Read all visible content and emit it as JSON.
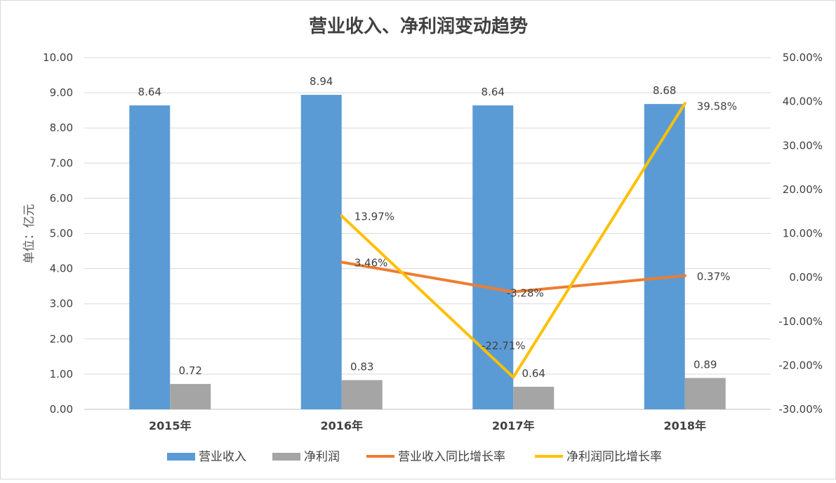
{
  "chart_data": {
    "type": "bar",
    "title": "营业收入、净利润变动趋势",
    "ylabel": "单位：亿元",
    "categories": [
      "2015年",
      "2016年",
      "2017年",
      "2018年"
    ],
    "ylim": [
      0,
      10
    ],
    "y_ticks": [
      "0.00",
      "1.00",
      "2.00",
      "3.00",
      "4.00",
      "5.00",
      "6.00",
      "7.00",
      "8.00",
      "9.00",
      "10.00"
    ],
    "y2lim": [
      -30,
      50
    ],
    "y2_ticks": [
      "-30.00%",
      "-20.00%",
      "-10.00%",
      "0.00%",
      "10.00%",
      "20.00%",
      "30.00%",
      "40.00%",
      "50.00%"
    ],
    "grid": true,
    "legend_position": "bottom",
    "series": [
      {
        "name": "营业收入",
        "type": "bar",
        "axis": "left",
        "color": "#5B9BD5",
        "values": [
          8.64,
          8.94,
          8.64,
          8.68
        ],
        "labels": [
          "8.64",
          "8.94",
          "8.64",
          "8.68"
        ]
      },
      {
        "name": "净利润",
        "type": "bar",
        "axis": "left",
        "color": "#A5A5A5",
        "values": [
          0.72,
          0.83,
          0.64,
          0.89
        ],
        "labels": [
          "0.72",
          "0.83",
          "0.64",
          "0.89"
        ]
      },
      {
        "name": "营业收入同比增长率",
        "type": "line",
        "axis": "right",
        "color": "#ED7D31",
        "values": [
          null,
          3.46,
          -3.28,
          0.37
        ],
        "labels": [
          "",
          "3.46%",
          "-3.28%",
          "0.37%"
        ]
      },
      {
        "name": "净利润同比增长率",
        "type": "line",
        "axis": "right",
        "color": "#FFC000",
        "values": [
          null,
          13.97,
          -22.71,
          39.58
        ],
        "labels": [
          "",
          "13.97%",
          "-22.71%",
          "39.58%"
        ]
      }
    ]
  }
}
